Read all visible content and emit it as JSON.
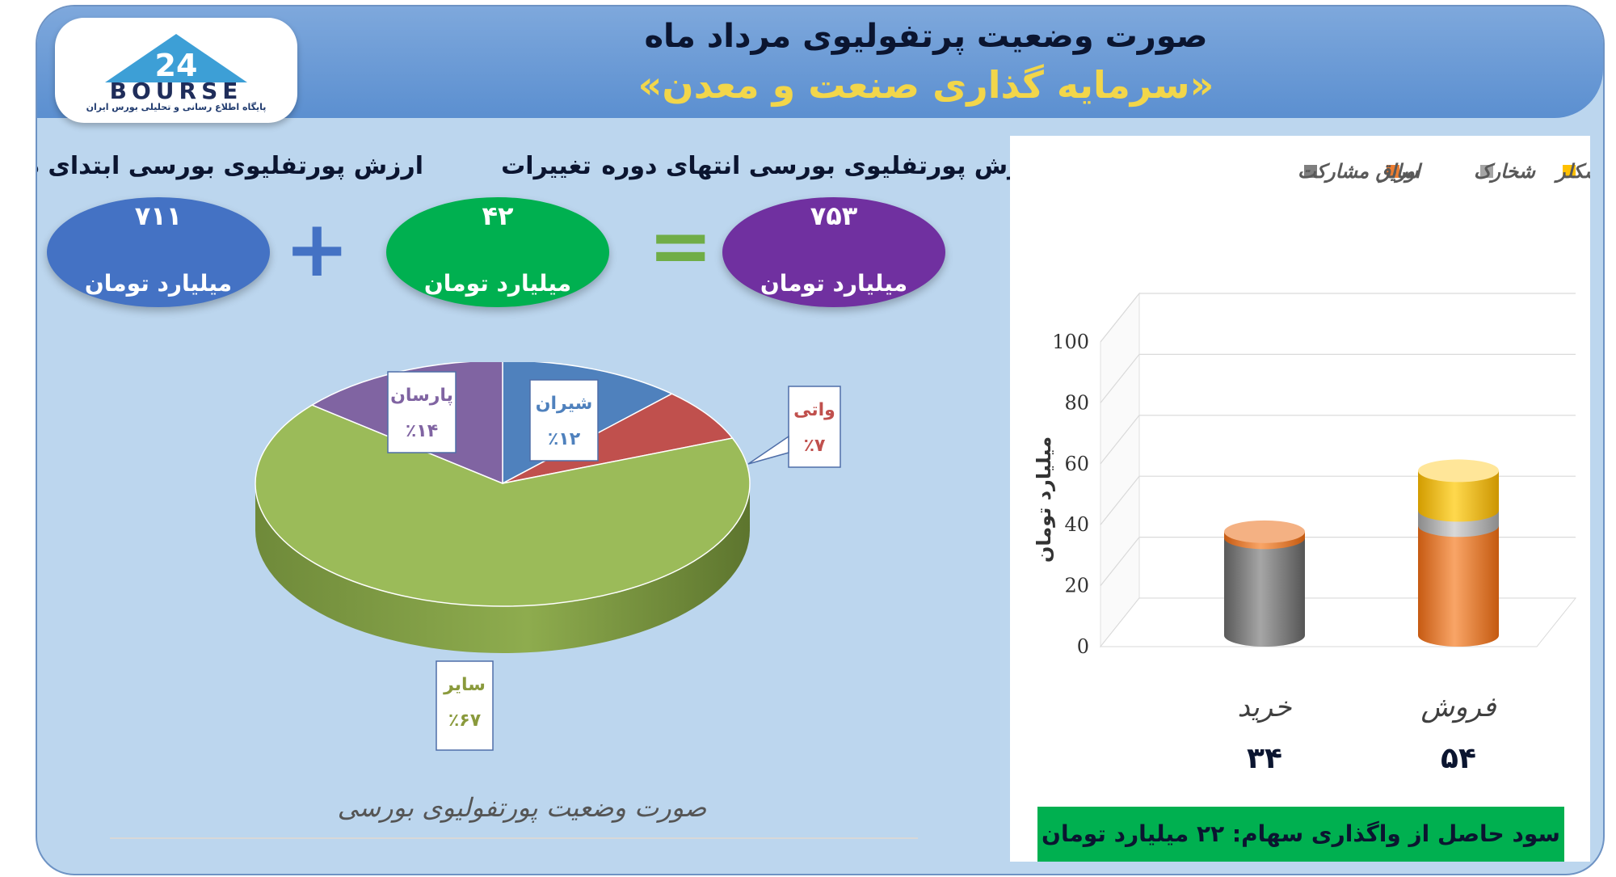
{
  "header": {
    "title": "صورت وضعیت پرتفولیوی مرداد ماه",
    "subtitle": "«سرمایه گذاری صنعت و معدن»"
  },
  "logo": {
    "text": "BOURSE",
    "tagline": "پایگاه اطلاع رسانی و تحلیلی بورس ایران"
  },
  "summary": {
    "start": {
      "label": "ارزش پورتفلیوی بورسی ابتدای دوره",
      "value": "۷۱۱",
      "unit": "میلیارد تومان",
      "color": "#4472c4"
    },
    "change": {
      "label": "تغییرات",
      "value": "۴۲",
      "unit": "میلیارد تومان",
      "color": "#00b050"
    },
    "end": {
      "label": "ارزش پورتفلیوی بورسی انتهای دوره",
      "value": "۷۵۳",
      "unit": "میلیارد تومان",
      "color": "#7030a0"
    },
    "plus_color": "#4472c4",
    "equals_color": "#70ad47"
  },
  "pie_caption": "صورت وضعیت پورتفولیوی بورسی",
  "profit_text": "سود حاصل از واگذاری سهام: ۲۲ میلیارد تومان",
  "chart_data": [
    {
      "type": "pie",
      "title": "صورت وضعیت پورتفولیوی بورسی",
      "slices": [
        {
          "label": "شیران",
          "value": 12,
          "pct_label": "٪۱۲",
          "color": "#4f81bd"
        },
        {
          "label": "واتی",
          "value": 7,
          "pct_label": "٪۷",
          "color": "#c0504d"
        },
        {
          "label": "سایر",
          "value": 67,
          "pct_label": "٪۶۷",
          "color": "#9bbb59"
        },
        {
          "label": "پارسان",
          "value": 14,
          "pct_label": "٪۱۴",
          "color": "#8064a2"
        }
      ],
      "label_colors": {
        "شیران": "#4f81bd",
        "واتی": "#c0504d",
        "سایر": "#8a9a3c",
        "پارسان": "#8064a2"
      }
    },
    {
      "type": "bar",
      "stacked": true,
      "ylabel": "میلیارد تومان",
      "ylim": [
        0,
        100
      ],
      "yticks": [
        0,
        20,
        40,
        60,
        80,
        100
      ],
      "grid": true,
      "legend_position": "top",
      "categories": [
        "خرید",
        "فروش"
      ],
      "category_totals": [
        "۳۴",
        "۵۴"
      ],
      "series": [
        {
          "name": "اوراق مشارکت",
          "color": "#7f7f7f",
          "values": [
            32,
            0
          ]
        },
        {
          "name": "سایر",
          "color": "#ed7d31",
          "values": [
            2,
            36
          ]
        },
        {
          "name": "شخارک",
          "color": "#a5a5a5",
          "values": [
            0,
            5
          ]
        },
        {
          "name": "شکلر",
          "color": "#ffc000",
          "values": [
            0,
            13
          ]
        }
      ]
    }
  ]
}
